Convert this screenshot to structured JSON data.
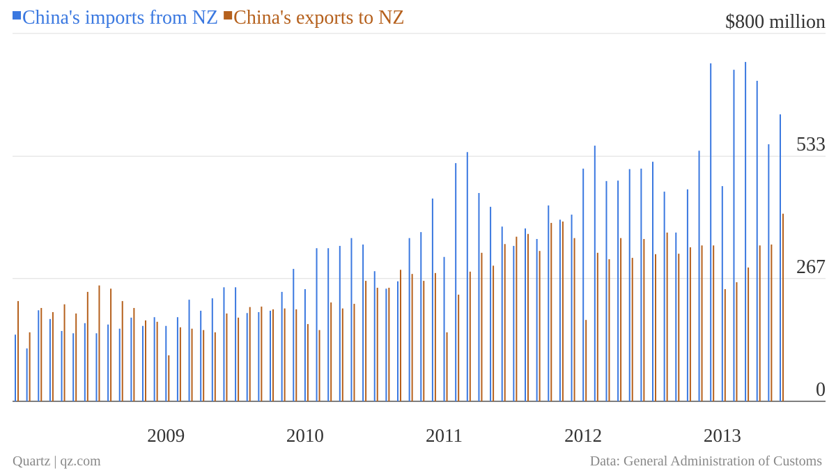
{
  "chart_data": {
    "type": "bar",
    "categories": [
      null,
      null,
      null,
      null,
      null,
      null,
      null,
      null,
      null,
      null,
      null,
      null,
      null,
      "2009",
      null,
      null,
      null,
      null,
      null,
      null,
      null,
      null,
      null,
      null,
      null,
      "2010",
      null,
      null,
      null,
      null,
      null,
      null,
      null,
      null,
      null,
      null,
      null,
      "2011",
      null,
      null,
      null,
      null,
      null,
      null,
      null,
      null,
      null,
      null,
      null,
      "2012",
      null,
      null,
      null,
      null,
      null,
      null,
      null,
      null,
      null,
      null,
      null,
      "2013",
      null,
      null,
      null,
      null,
      null
    ],
    "series": [
      {
        "name": "China's imports from NZ",
        "color": "#3a78e0",
        "values": [
          145,
          115,
          198,
          179,
          153,
          148,
          170,
          148,
          167,
          158,
          182,
          164,
          183,
          164,
          183,
          221,
          197,
          224,
          248,
          248,
          192,
          194,
          197,
          238,
          288,
          244,
          333,
          333,
          338,
          355,
          341,
          283,
          245,
          261,
          355,
          368,
          441,
          314,
          518,
          542,
          453,
          423,
          380,
          338,
          376,
          353,
          426,
          395,
          406,
          506,
          556,
          479,
          480,
          505,
          506,
          521,
          456,
          367,
          461,
          545,
          735,
          468,
          721,
          738,
          697,
          559,
          624
        ]
      },
      {
        "name": "China's exports to NZ",
        "color": "#b5601c",
        "values": [
          218,
          150,
          203,
          194,
          211,
          191,
          238,
          252,
          245,
          218,
          203,
          176,
          173,
          100,
          161,
          158,
          155,
          150,
          191,
          182,
          205,
          206,
          200,
          202,
          200,
          168,
          155,
          215,
          202,
          212,
          262,
          247,
          247,
          286,
          277,
          262,
          279,
          150,
          232,
          282,
          323,
          295,
          342,
          358,
          364,
          327,
          388,
          391,
          355,
          177,
          323,
          309,
          355,
          312,
          353,
          320,
          367,
          321,
          335,
          339,
          339,
          244,
          259,
          291,
          339,
          341,
          408
        ]
      }
    ],
    "ylim": [
      0,
      800
    ],
    "yticks": [
      0,
      267,
      533,
      {
        "value": 800,
        "label": "$800 million"
      }
    ],
    "grid": true,
    "legend": "top-left",
    "source": "Data: General Administration of Customs",
    "credit": "Quartz | qz.com"
  }
}
